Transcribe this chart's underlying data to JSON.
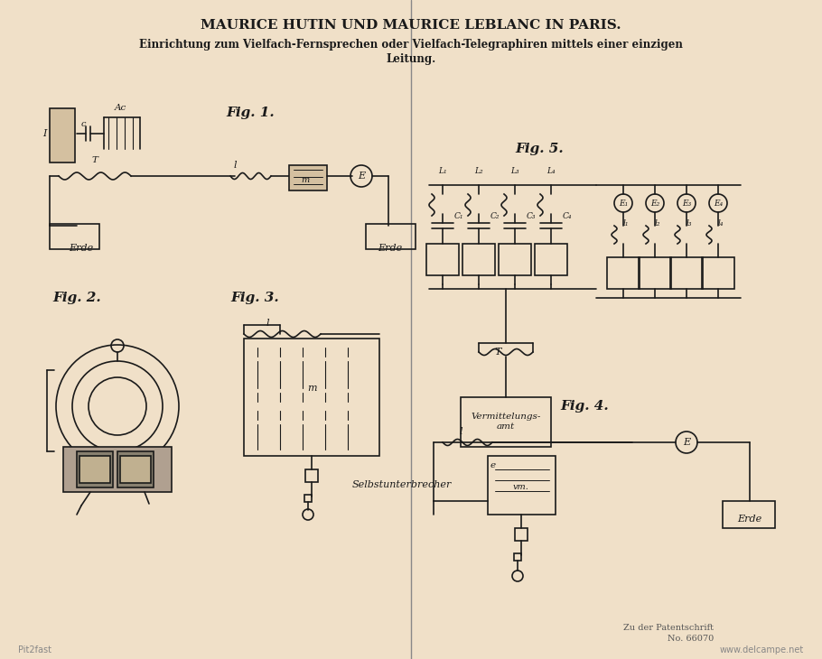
{
  "bg_color": "#f0e0c8",
  "page_bg": "#e8d5b8",
  "line_color": "#1a1a1a",
  "title_main": "MAURICE HUTIN UND MAURICE LEBLANC IN PARIS.",
  "title_sub1": "Einrichtung zum Vielfach-Fernsprechen oder Vielfach-Telegraphiren mittels einer einzigen",
  "title_sub2": "Leitung.",
  "fig1_label": "Fig. 1.",
  "fig2_label": "Fig. 2.",
  "fig3_label": "Fig. 3.",
  "fig4_label": "Fig. 4.",
  "fig5_label": "Fig. 5.",
  "bottom_right1": "Zu der Patentschrift",
  "bottom_right2": "No. 66070",
  "bottom_left": "Pit2fast",
  "bottom_right3": "www.delcampe.net",
  "selbstunterbrecher": "Selbstunterbrecher",
  "vermittelungsamt": "Vermittelungs-\namt",
  "erde": "Erde"
}
